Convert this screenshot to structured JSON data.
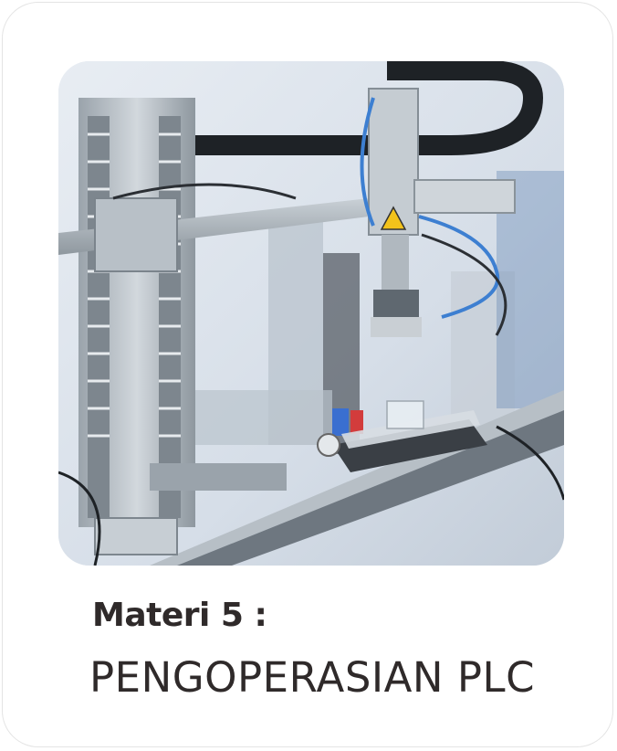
{
  "card": {
    "label": "Materi 5 :",
    "title": "PENGOPERASIAN PLC"
  },
  "image": {
    "icon": "plc-automation-machine-photo"
  },
  "colors": {
    "text": "#2f2a2a",
    "border": "#e4e4e4",
    "background": "#ffffff"
  }
}
